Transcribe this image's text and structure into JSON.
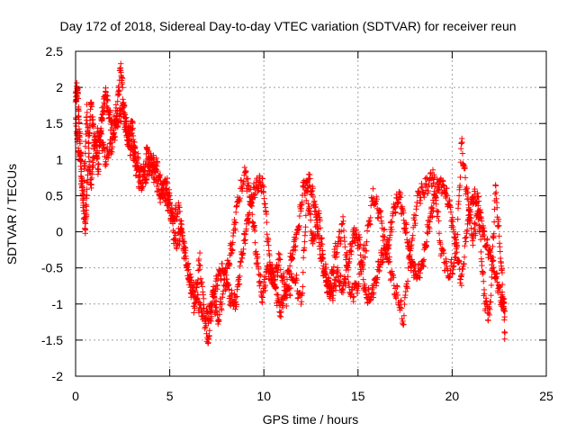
{
  "chart_data": {
    "type": "scatter",
    "title": "Day 172 of 2018, Sidereal Day-to-day VTEC variation (SDTVAR) for receiver reun",
    "xlabel": "GPS time / hours",
    "ylabel": "SDTVAR / TECUs",
    "xlim": [
      0,
      25
    ],
    "ylim": [
      -2,
      2.5
    ],
    "grid": true,
    "marker": "+",
    "x_ticks": [
      "0",
      "5",
      "10",
      "15",
      "20",
      "25"
    ],
    "y_ticks": [
      "-2",
      "-1.5",
      "-1",
      "-0.5",
      "0",
      "0.5",
      "1",
      "1.5",
      "2",
      "2.5"
    ],
    "series": [
      {
        "name": "SDTVAR",
        "color": "#ff0000",
        "x": [
          0.0,
          0.1,
          0.2,
          0.3,
          0.5,
          0.6,
          0.8,
          1.0,
          1.2,
          1.4,
          1.6,
          1.8,
          2.0,
          2.2,
          2.4,
          2.6,
          2.8,
          3.0,
          3.2,
          3.5,
          3.8,
          4.0,
          4.2,
          4.5,
          4.8,
          5.0,
          5.3,
          5.6,
          6.0,
          6.3,
          6.6,
          7.0,
          7.3,
          7.6,
          8.0,
          8.3,
          8.6,
          9.0,
          9.3,
          9.6,
          9.9,
          10.2,
          10.5,
          10.8,
          11.2,
          11.6,
          12.0,
          12.3,
          12.6,
          12.9,
          13.2,
          13.5,
          13.8,
          14.2,
          14.6,
          15.0,
          15.4,
          15.8,
          16.2,
          16.6,
          17.0,
          17.4,
          17.8,
          18.2,
          18.6,
          19.0,
          19.4,
          19.8,
          20.2,
          20.5,
          20.8,
          21.1,
          21.4,
          21.7,
          22.0,
          22.3,
          22.6,
          22.8
        ],
        "y": [
          1.8,
          2.0,
          1.4,
          0.9,
          0.0,
          0.5,
          1.8,
          1.3,
          0.9,
          1.6,
          1.9,
          1.6,
          1.4,
          1.7,
          2.3,
          1.6,
          1.3,
          1.5,
          0.9,
          0.6,
          1.1,
          0.9,
          0.8,
          0.5,
          0.7,
          0.4,
          -0.2,
          0.0,
          -0.6,
          -1.0,
          -0.4,
          -1.6,
          -0.9,
          -1.2,
          -0.6,
          -0.2,
          0.4,
          0.8,
          0.5,
          -0.3,
          -0.9,
          -0.5,
          -0.7,
          -0.4,
          -0.9,
          -0.6,
          -1.0,
          0.6,
          -0.2,
          0.3,
          -0.5,
          -0.8,
          -0.3,
          0.1,
          -0.9,
          -0.7,
          -0.2,
          0.5,
          0.2,
          -0.4,
          -0.8,
          -1.2,
          -0.2,
          0.5,
          0.6,
          0.8,
          -0.2,
          -0.6,
          -0.4,
          1.2,
          0.5,
          -0.1,
          0.3,
          -0.9,
          -1.2,
          0.6,
          -0.4,
          -1.4
        ],
        "x2": [
          0.0,
          0.2,
          0.4,
          0.6,
          0.8,
          1.0,
          1.3,
          1.6,
          1.9,
          2.2,
          2.5,
          2.8,
          3.1,
          3.4,
          3.7,
          4.0,
          4.3,
          4.6,
          4.9,
          5.2,
          5.5,
          5.8,
          6.1,
          6.4,
          6.7,
          7.0,
          7.3,
          7.6,
          7.9,
          8.2,
          8.5,
          8.8,
          9.1,
          9.4,
          9.7,
          10.0,
          10.3,
          10.6,
          10.9,
          11.2,
          11.5,
          11.8,
          12.1,
          12.4,
          12.7,
          13.0,
          13.3,
          13.6,
          13.9,
          14.2,
          14.5,
          14.8,
          15.1,
          15.4,
          15.7,
          16.0,
          16.3,
          16.6,
          16.9,
          17.2,
          17.5,
          17.8,
          18.1,
          18.4,
          18.7,
          19.0,
          19.3,
          19.6,
          19.9,
          20.2,
          20.5,
          20.8,
          21.1,
          21.4,
          21.7,
          22.0,
          22.3,
          22.6,
          22.8
        ],
        "y2": [
          1.5,
          1.1,
          0.4,
          1.7,
          0.6,
          1.2,
          1.4,
          1.0,
          1.2,
          1.5,
          1.7,
          1.2,
          1.1,
          0.9,
          0.7,
          1.0,
          0.9,
          0.6,
          0.4,
          0.2,
          0.3,
          -0.3,
          -0.7,
          -0.9,
          -1.1,
          -1.2,
          -0.9,
          -0.6,
          -0.5,
          -0.9,
          -1.0,
          -0.4,
          0.1,
          0.5,
          0.7,
          0.6,
          -0.4,
          -0.8,
          -1.1,
          -0.7,
          -0.3,
          0.0,
          0.6,
          0.7,
          0.4,
          -0.3,
          -0.7,
          -0.9,
          -0.6,
          -0.8,
          -0.4,
          0.0,
          -0.2,
          -0.9,
          -0.9,
          -0.6,
          -0.3,
          -0.2,
          0.3,
          0.5,
          0.1,
          -0.4,
          -0.6,
          -0.5,
          0.0,
          0.4,
          0.7,
          0.6,
          0.3,
          -0.2,
          -0.7,
          0.1,
          0.5,
          0.4,
          -0.1,
          -0.3,
          -0.6,
          -0.9,
          -1.1
        ]
      }
    ]
  }
}
